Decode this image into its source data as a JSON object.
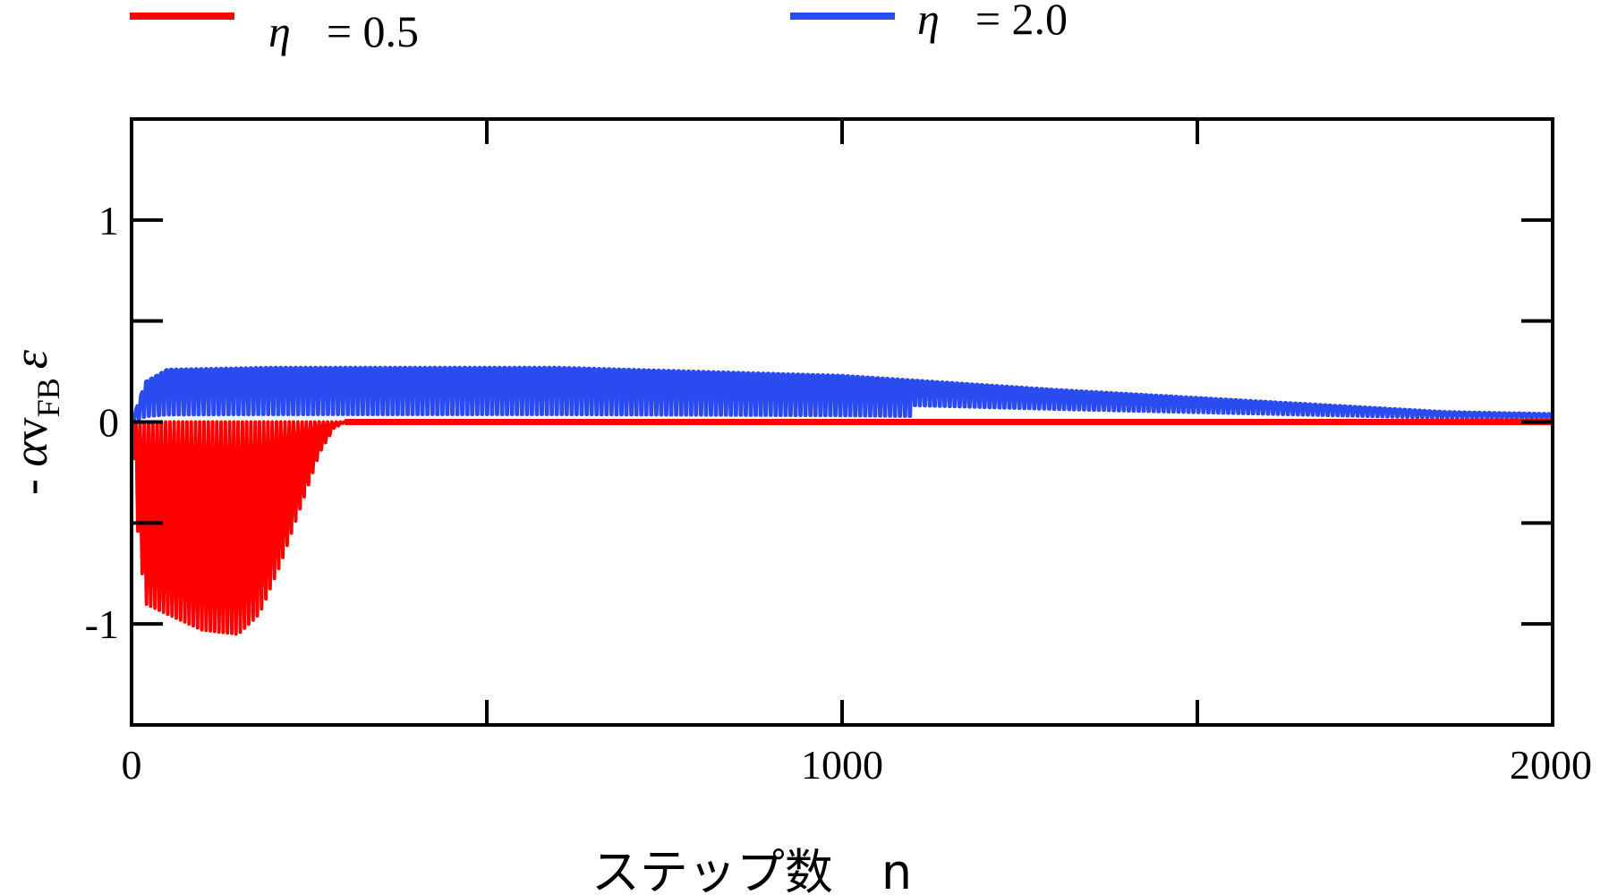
{
  "chart_data": {
    "type": "line",
    "xlabel": "ステップ数　n",
    "ylabel": {
      "prefix": "- ",
      "alpha": "α",
      "v": "v",
      "sub": "FB",
      "epsilon": "ε"
    },
    "xlim": [
      0,
      2000
    ],
    "ylim": [
      -1.5,
      1.5
    ],
    "x_ticks": [
      0,
      500,
      1000,
      1500,
      2000
    ],
    "x_tick_labels": [
      "0",
      "1000",
      "2000"
    ],
    "x_tick_label_values": [
      0,
      1000,
      2000
    ],
    "y_ticks": [
      -1.5,
      -1,
      -0.5,
      0,
      0.5,
      1,
      1.5
    ],
    "y_tick_labels": [
      "-1",
      "0",
      "1"
    ],
    "y_tick_label_values": [
      -1,
      0,
      1
    ],
    "legend_placement": "top",
    "grid": false,
    "series": [
      {
        "legend_label": "η　= 0.5",
        "legend_symbol": "η",
        "legend_value": "= 0.5",
        "color": "#ff0000",
        "pattern": "oscillating",
        "envelope_min": [
          [
            0,
            0
          ],
          [
            10,
            -0.6
          ],
          [
            20,
            -0.9
          ],
          [
            50,
            -0.95
          ],
          [
            100,
            -1.03
          ],
          [
            150,
            -1.05
          ],
          [
            180,
            -0.95
          ],
          [
            210,
            -0.7
          ],
          [
            240,
            -0.4
          ],
          [
            265,
            -0.15
          ],
          [
            285,
            -0.03
          ],
          [
            300,
            0
          ],
          [
            2000,
            0
          ]
        ],
        "envelope_max": [
          [
            0,
            0
          ],
          [
            2000,
            0
          ]
        ]
      },
      {
        "legend_label": "η　= 2.0",
        "legend_symbol": "η",
        "legend_value": "= 2.0",
        "color": "#2a4bef",
        "pattern": "oscillating",
        "envelope_max": [
          [
            0,
            0
          ],
          [
            10,
            0.1
          ],
          [
            20,
            0.2
          ],
          [
            50,
            0.26
          ],
          [
            200,
            0.27
          ],
          [
            600,
            0.27
          ],
          [
            1000,
            0.23
          ],
          [
            1300,
            0.16
          ],
          [
            1600,
            0.1
          ],
          [
            1850,
            0.05
          ],
          [
            2000,
            0.04
          ]
        ],
        "envelope_min": [
          [
            0,
            0
          ],
          [
            2000,
            0
          ]
        ],
        "dip_depth_fraction": 0.7
      }
    ]
  }
}
